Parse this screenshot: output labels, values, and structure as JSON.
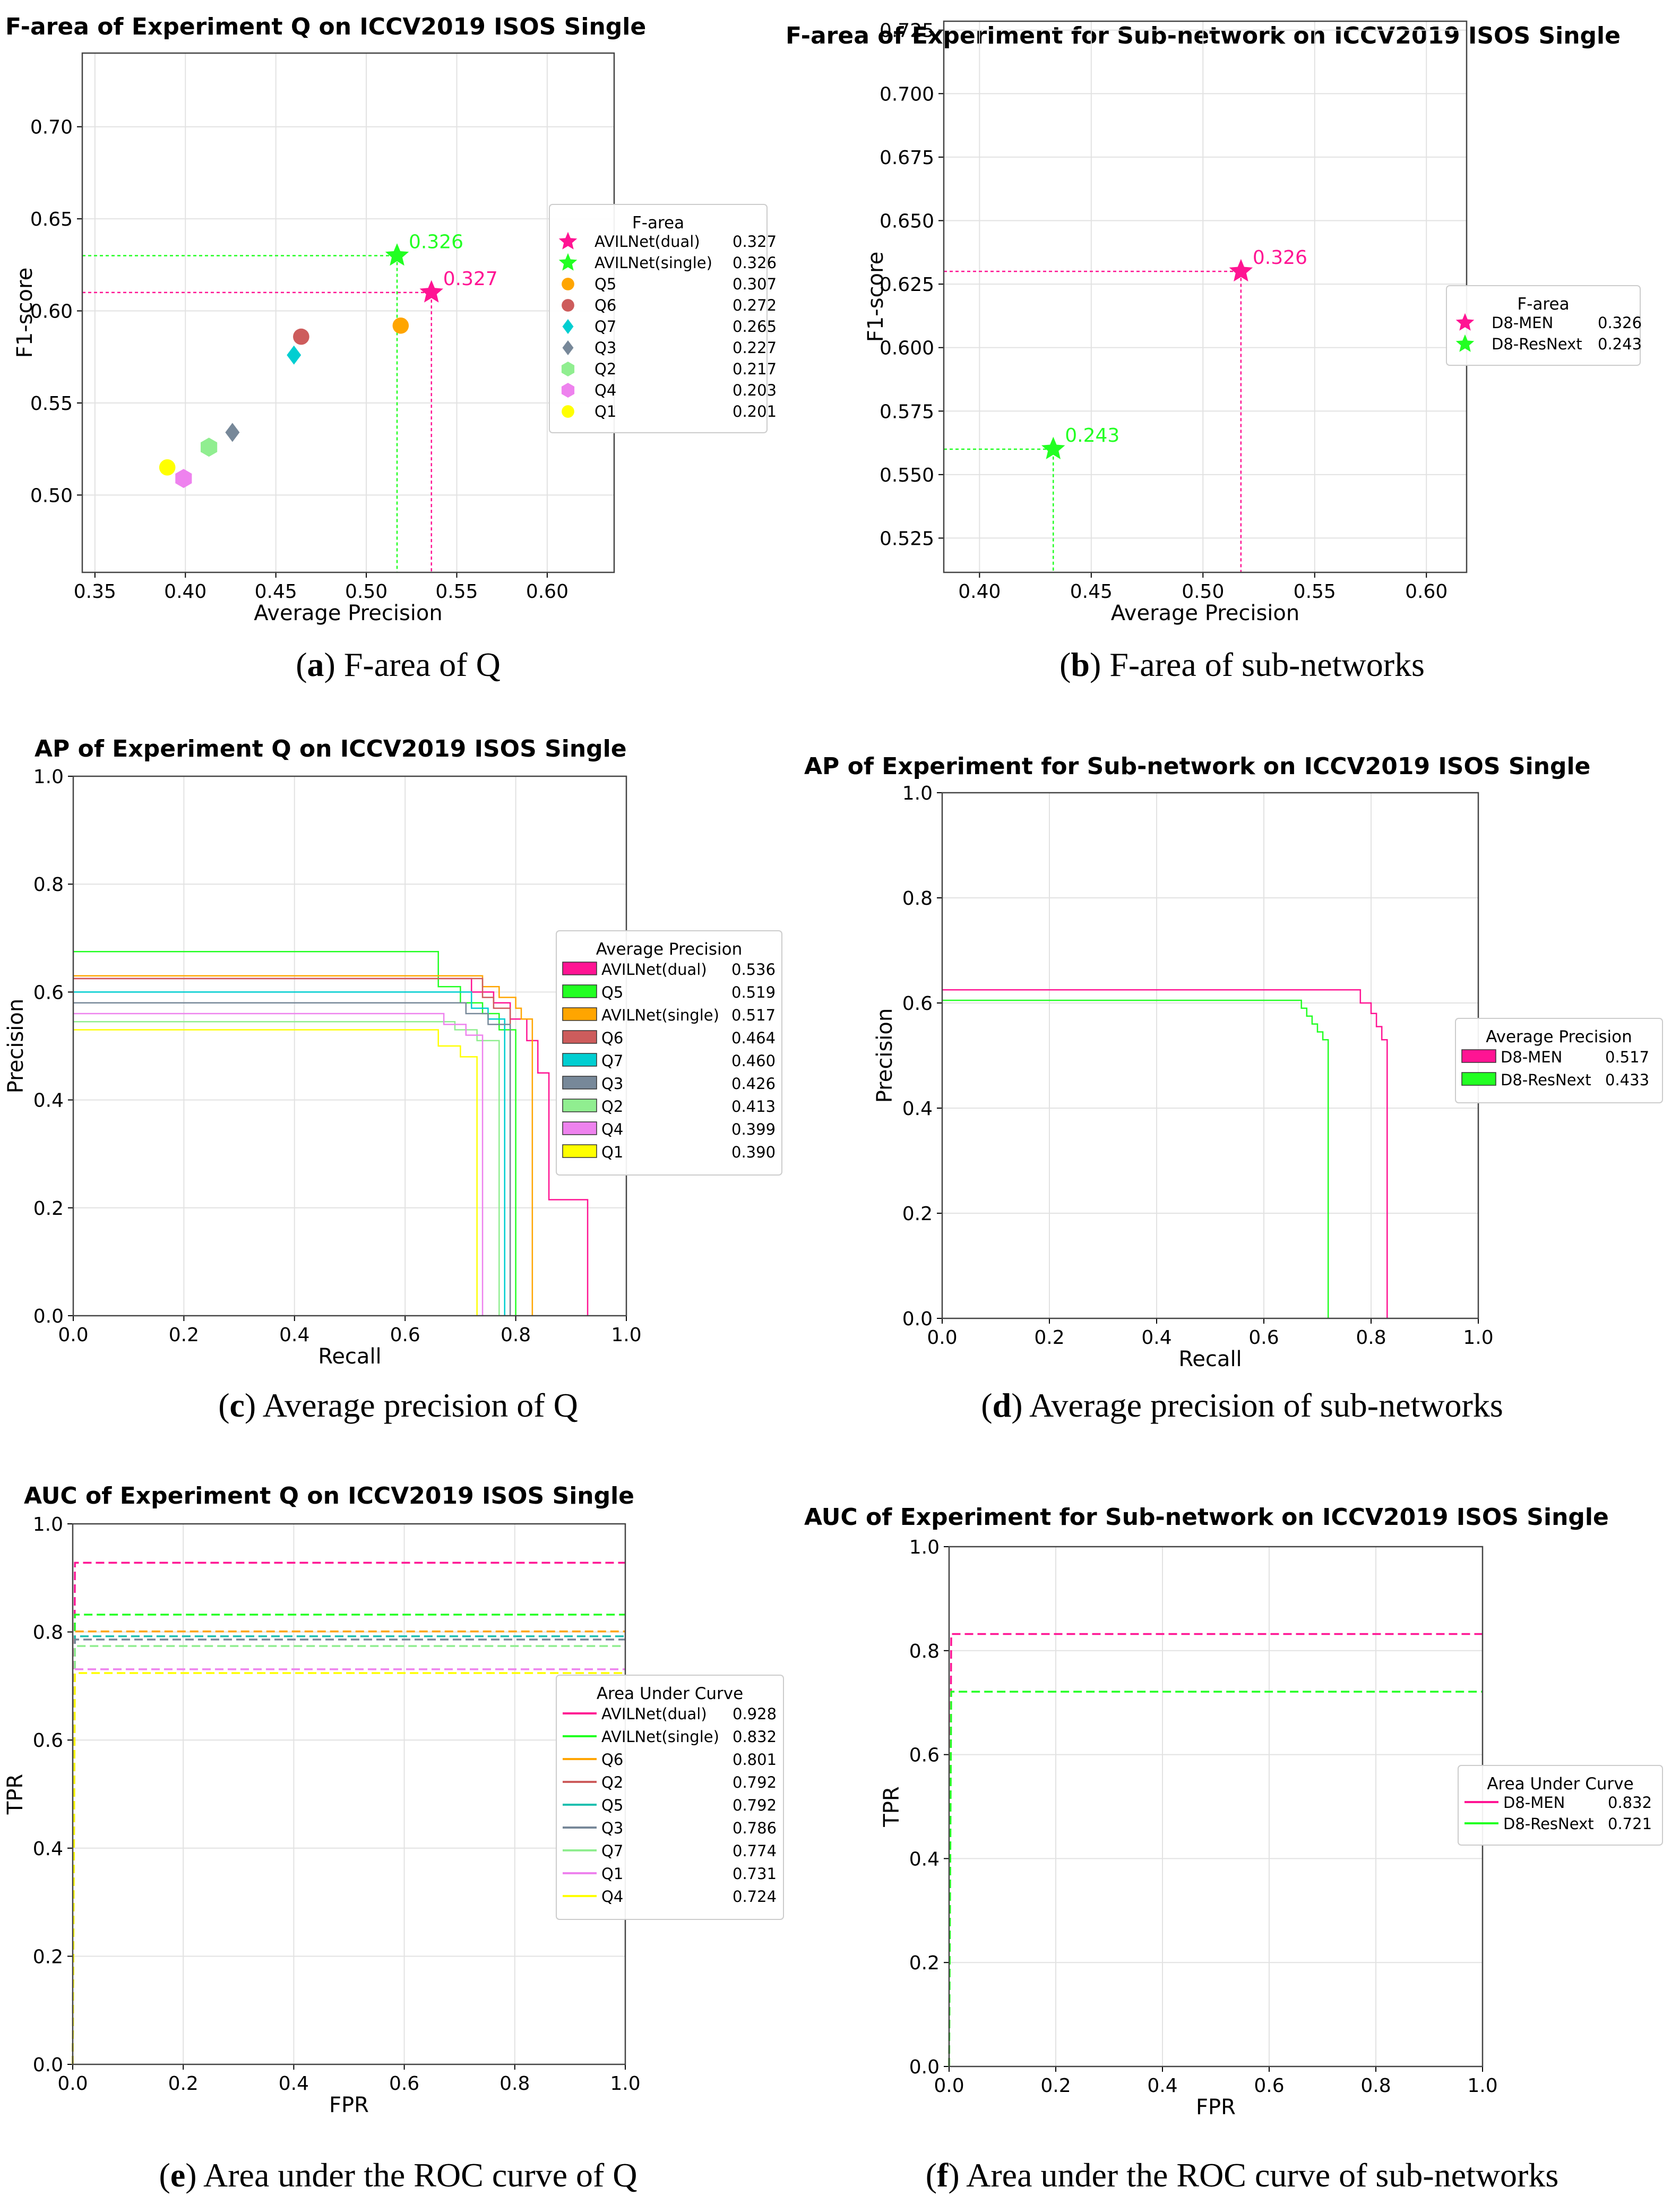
{
  "chart_data": [
    {
      "id": "a",
      "type": "scatter",
      "title": "F-area of Experiment Q on ICCV2019 ISOS Single",
      "xlabel": "Average Precision",
      "ylabel": "F1-score",
      "xlim": [
        0.343,
        0.637
      ],
      "ylim": [
        0.458,
        0.74
      ],
      "xticks": [
        0.35,
        0.4,
        0.45,
        0.5,
        0.55,
        0.6
      ],
      "yticks": [
        0.5,
        0.55,
        0.6,
        0.65,
        0.7
      ],
      "tick_decimals": 2,
      "legend_title": "F-area",
      "legend_position": "center-right",
      "points": [
        {
          "name": "AVILNet(dual)",
          "x": 0.536,
          "y": 0.61,
          "value": "0.327",
          "color": "#ff1493",
          "marker": "star",
          "annotate": "0.327"
        },
        {
          "name": "AVILNet(single)",
          "x": 0.517,
          "y": 0.63,
          "value": "0.326",
          "color": "#22ff22",
          "marker": "star",
          "annotate": "0.326"
        },
        {
          "name": "Q5",
          "x": 0.519,
          "y": 0.592,
          "value": "0.307",
          "color": "#ffa500",
          "marker": "circle"
        },
        {
          "name": "Q6",
          "x": 0.464,
          "y": 0.586,
          "value": "0.272",
          "color": "#cd5c5c",
          "marker": "circle"
        },
        {
          "name": "Q7",
          "x": 0.46,
          "y": 0.576,
          "value": "0.265",
          "color": "#00ced1",
          "marker": "diamond"
        },
        {
          "name": "Q3",
          "x": 0.426,
          "y": 0.534,
          "value": "0.227",
          "color": "#778899",
          "marker": "diamond"
        },
        {
          "name": "Q2",
          "x": 0.413,
          "y": 0.526,
          "value": "0.217",
          "color": "#90ee90",
          "marker": "hexagon"
        },
        {
          "name": "Q4",
          "x": 0.399,
          "y": 0.509,
          "value": "0.203",
          "color": "#ee82ee",
          "marker": "hexagon"
        },
        {
          "name": "Q1",
          "x": 0.39,
          "y": 0.515,
          "value": "0.201",
          "color": "#ffff00",
          "marker": "circle"
        }
      ]
    },
    {
      "id": "b",
      "type": "scatter",
      "title": "F-area of Experiment for Sub-network on ICCV2019 ISOS Single",
      "xlabel": "Average Precision",
      "ylabel": "F1-score",
      "xlim": [
        0.384,
        0.618
      ],
      "ylim": [
        0.5115,
        0.7285
      ],
      "xticks": [
        0.4,
        0.45,
        0.5,
        0.55,
        0.6
      ],
      "yticks": [
        0.525,
        0.55,
        0.575,
        0.6,
        0.625,
        0.65,
        0.675,
        0.7,
        0.725
      ],
      "tick_decimals": [
        2,
        3
      ],
      "legend_title": "F-area",
      "legend_position": "center-right",
      "points": [
        {
          "name": "D8-MEN",
          "x": 0.517,
          "y": 0.63,
          "value": "0.326",
          "color": "#ff1493",
          "marker": "star",
          "annotate": "0.326"
        },
        {
          "name": "D8-ResNext",
          "x": 0.433,
          "y": 0.56,
          "value": "0.243",
          "color": "#22ff22",
          "marker": "star",
          "annotate": "0.243"
        }
      ]
    },
    {
      "id": "c",
      "type": "line",
      "title": "AP of Experiment Q on ICCV2019 ISOS Single",
      "xlabel": "Recall",
      "ylabel": "Precision",
      "xlim": [
        0,
        1
      ],
      "ylim": [
        0,
        1
      ],
      "xticks": [
        0.0,
        0.2,
        0.4,
        0.6,
        0.8,
        1.0
      ],
      "yticks": [
        0.0,
        0.2,
        0.4,
        0.6,
        0.8,
        1.0
      ],
      "tick_decimals": 1,
      "legend_title": "Average Precision",
      "legend_position": "center-right",
      "legend_style": "patch",
      "series": [
        {
          "name": "AVILNet(dual)",
          "value": "0.536",
          "color": "#ff1493",
          "x": [
            0,
            0.7,
            0.72,
            0.76,
            0.79,
            0.82,
            0.84,
            0.86,
            0.93,
            0.93
          ],
          "y": [
            0.625,
            0.625,
            0.6,
            0.58,
            0.55,
            0.51,
            0.45,
            0.215,
            0.215,
            0
          ]
        },
        {
          "name": "Q5",
          "value": "0.519",
          "color": "#22ff22",
          "x": [
            0,
            0.62,
            0.66,
            0.7,
            0.74,
            0.77,
            0.8,
            0.8
          ],
          "y": [
            0.675,
            0.675,
            0.61,
            0.58,
            0.56,
            0.53,
            0.5,
            0
          ]
        },
        {
          "name": "AVILNet(single)",
          "value": "0.517",
          "color": "#ffa500",
          "x": [
            0,
            0.69,
            0.74,
            0.77,
            0.8,
            0.81,
            0.83,
            0.83
          ],
          "y": [
            0.63,
            0.63,
            0.61,
            0.59,
            0.57,
            0.55,
            0.52,
            0
          ]
        },
        {
          "name": "Q6",
          "value": "0.464",
          "color": "#cd5c5c",
          "x": [
            0,
            0.69,
            0.74,
            0.76,
            0.79,
            0.79
          ],
          "y": [
            0.625,
            0.625,
            0.59,
            0.57,
            0.55,
            0
          ]
        },
        {
          "name": "Q7",
          "value": "0.460",
          "color": "#00ced1",
          "x": [
            0,
            0.66,
            0.72,
            0.75,
            0.78,
            0.78
          ],
          "y": [
            0.6,
            0.6,
            0.57,
            0.55,
            0.52,
            0
          ]
        },
        {
          "name": "Q3",
          "value": "0.426",
          "color": "#778899",
          "x": [
            0,
            0.66,
            0.71,
            0.75,
            0.79,
            0.79
          ],
          "y": [
            0.58,
            0.58,
            0.56,
            0.54,
            0.52,
            0
          ]
        },
        {
          "name": "Q2",
          "value": "0.413",
          "color": "#90ee90",
          "x": [
            0,
            0.65,
            0.69,
            0.73,
            0.77,
            0.77
          ],
          "y": [
            0.545,
            0.545,
            0.53,
            0.51,
            0.49,
            0
          ]
        },
        {
          "name": "Q4",
          "value": "0.399",
          "color": "#ee82ee",
          "x": [
            0,
            0.62,
            0.67,
            0.71,
            0.74,
            0.74
          ],
          "y": [
            0.56,
            0.56,
            0.54,
            0.52,
            0.5,
            0
          ]
        },
        {
          "name": "Q1",
          "value": "0.390",
          "color": "#ffff00",
          "x": [
            0,
            0.6,
            0.66,
            0.7,
            0.73,
            0.73
          ],
          "y": [
            0.53,
            0.53,
            0.5,
            0.48,
            0.45,
            0
          ]
        }
      ]
    },
    {
      "id": "d",
      "type": "line",
      "title": "AP of Experiment for Sub-network on ICCV2019 ISOS Single",
      "xlabel": "Recall",
      "ylabel": "Precision",
      "xlim": [
        0,
        1
      ],
      "ylim": [
        0,
        1
      ],
      "xticks": [
        0.0,
        0.2,
        0.4,
        0.6,
        0.8,
        1.0
      ],
      "yticks": [
        0.0,
        0.2,
        0.4,
        0.6,
        0.8,
        1.0
      ],
      "tick_decimals": 1,
      "legend_title": "Average Precision",
      "legend_position": "center-right",
      "legend_style": "patch",
      "series": [
        {
          "name": "D8-MEN",
          "value": "0.517",
          "color": "#ff1493",
          "x": [
            0,
            0.76,
            0.78,
            0.8,
            0.81,
            0.82,
            0.83,
            0.83
          ],
          "y": [
            0.625,
            0.625,
            0.6,
            0.58,
            0.555,
            0.53,
            0.5,
            0
          ]
        },
        {
          "name": "D8-ResNext",
          "value": "0.433",
          "color": "#22ff22",
          "x": [
            0,
            0.66,
            0.67,
            0.68,
            0.69,
            0.7,
            0.71,
            0.72,
            0.72
          ],
          "y": [
            0.605,
            0.605,
            0.59,
            0.575,
            0.56,
            0.545,
            0.53,
            0.51,
            0
          ]
        }
      ]
    },
    {
      "id": "e",
      "type": "line",
      "title": "AUC of Experiment Q on ICCV2019 ISOS Single",
      "xlabel": "FPR",
      "ylabel": "TPR",
      "xlim": [
        0,
        1
      ],
      "ylim": [
        0,
        1
      ],
      "xticks": [
        0.0,
        0.2,
        0.4,
        0.6,
        0.8,
        1.0
      ],
      "yticks": [
        0.0,
        0.2,
        0.4,
        0.6,
        0.8,
        1.0
      ],
      "tick_decimals": 1,
      "legend_title": "Area Under Curve",
      "legend_position": "center-right",
      "legend_style": "line",
      "series": [
        {
          "name": "AVILNet(dual)",
          "value": "0.928",
          "color": "#ff1493",
          "tpr": 0.928
        },
        {
          "name": "AVILNet(single)",
          "value": "0.832",
          "color": "#22ff22",
          "tpr": 0.832
        },
        {
          "name": "Q6",
          "value": "0.801",
          "color": "#ffa500",
          "tpr": 0.801
        },
        {
          "name": "Q2",
          "value": "0.792",
          "color": "#cd5c5c",
          "tpr": 0.792
        },
        {
          "name": "Q5",
          "value": "0.792",
          "color": "#20c0b0",
          "tpr": 0.792
        },
        {
          "name": "Q3",
          "value": "0.786",
          "color": "#778899",
          "tpr": 0.786
        },
        {
          "name": "Q7",
          "value": "0.774",
          "color": "#90ee90",
          "tpr": 0.774
        },
        {
          "name": "Q1",
          "value": "0.731",
          "color": "#ee82ee",
          "tpr": 0.731
        },
        {
          "name": "Q4",
          "value": "0.724",
          "color": "#ffff00",
          "tpr": 0.724
        }
      ]
    },
    {
      "id": "f",
      "type": "line",
      "title": "AUC of Experiment for Sub-network on ICCV2019 ISOS Single",
      "xlabel": "FPR",
      "ylabel": "TPR",
      "xlim": [
        0,
        1
      ],
      "ylim": [
        0,
        1
      ],
      "xticks": [
        0.0,
        0.2,
        0.4,
        0.6,
        0.8,
        1.0
      ],
      "yticks": [
        0.0,
        0.2,
        0.4,
        0.6,
        0.8,
        1.0
      ],
      "tick_decimals": 1,
      "legend_title": "Area Under Curve",
      "legend_position": "center-right",
      "legend_style": "line",
      "series": [
        {
          "name": "D8-MEN",
          "value": "0.832",
          "color": "#ff1493",
          "tpr": 0.832
        },
        {
          "name": "D8-ResNext",
          "value": "0.721",
          "color": "#22ff22",
          "tpr": 0.721
        }
      ]
    }
  ],
  "captions": [
    {
      "letter": "a",
      "text": "F-area of Q"
    },
    {
      "letter": "b",
      "text": "F-area of sub-networks"
    },
    {
      "letter": "c",
      "text": "Average precision of Q"
    },
    {
      "letter": "d",
      "text": "Average precision of sub-networks"
    },
    {
      "letter": "e",
      "text": "Area under the ROC curve of Q"
    },
    {
      "letter": "f",
      "text": "Area under the ROC curve of sub-networks"
    }
  ]
}
